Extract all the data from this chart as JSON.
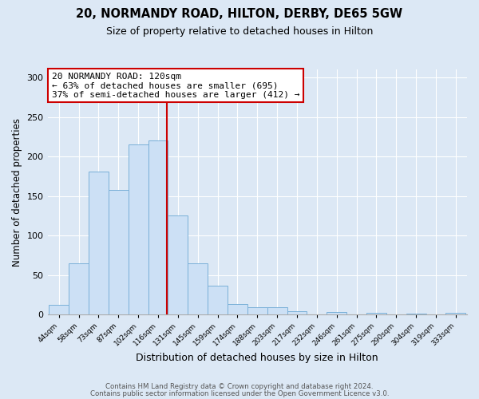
{
  "title": "20, NORMANDY ROAD, HILTON, DERBY, DE65 5GW",
  "subtitle": "Size of property relative to detached houses in Hilton",
  "xlabel": "Distribution of detached houses by size in Hilton",
  "ylabel": "Number of detached properties",
  "bar_labels": [
    "44sqm",
    "58sqm",
    "73sqm",
    "87sqm",
    "102sqm",
    "116sqm",
    "131sqm",
    "145sqm",
    "159sqm",
    "174sqm",
    "188sqm",
    "203sqm",
    "217sqm",
    "232sqm",
    "246sqm",
    "261sqm",
    "275sqm",
    "290sqm",
    "304sqm",
    "319sqm",
    "333sqm"
  ],
  "bar_values": [
    12,
    65,
    181,
    158,
    215,
    220,
    125,
    65,
    36,
    13,
    9,
    9,
    4,
    0,
    3,
    0,
    2,
    0,
    1,
    0,
    2
  ],
  "bar_color": "#cce0f5",
  "bar_edge_color": "#7ab0d8",
  "bin_width": 14,
  "bin_starts": [
    37,
    51,
    65,
    79,
    93,
    107,
    121,
    135,
    149,
    163,
    177,
    191,
    205,
    219,
    233,
    247,
    261,
    275,
    289,
    303,
    317
  ],
  "vline_x": 120,
  "vline_color": "#cc0000",
  "annotation_line1": "20 NORMANDY ROAD: 120sqm",
  "annotation_line2": "← 63% of detached houses are smaller (695)",
  "annotation_line3": "37% of semi-detached houses are larger (412) →",
  "annotation_box_color": "#cc0000",
  "ylim": [
    0,
    310
  ],
  "yticks": [
    0,
    50,
    100,
    150,
    200,
    250,
    300
  ],
  "footer_line1": "Contains HM Land Registry data © Crown copyright and database right 2024.",
  "footer_line2": "Contains public sector information licensed under the Open Government Licence v3.0.",
  "fig_bg_color": "#dce8f5",
  "plot_bg_color": "#dce8f5",
  "grid_color": "#ffffff"
}
